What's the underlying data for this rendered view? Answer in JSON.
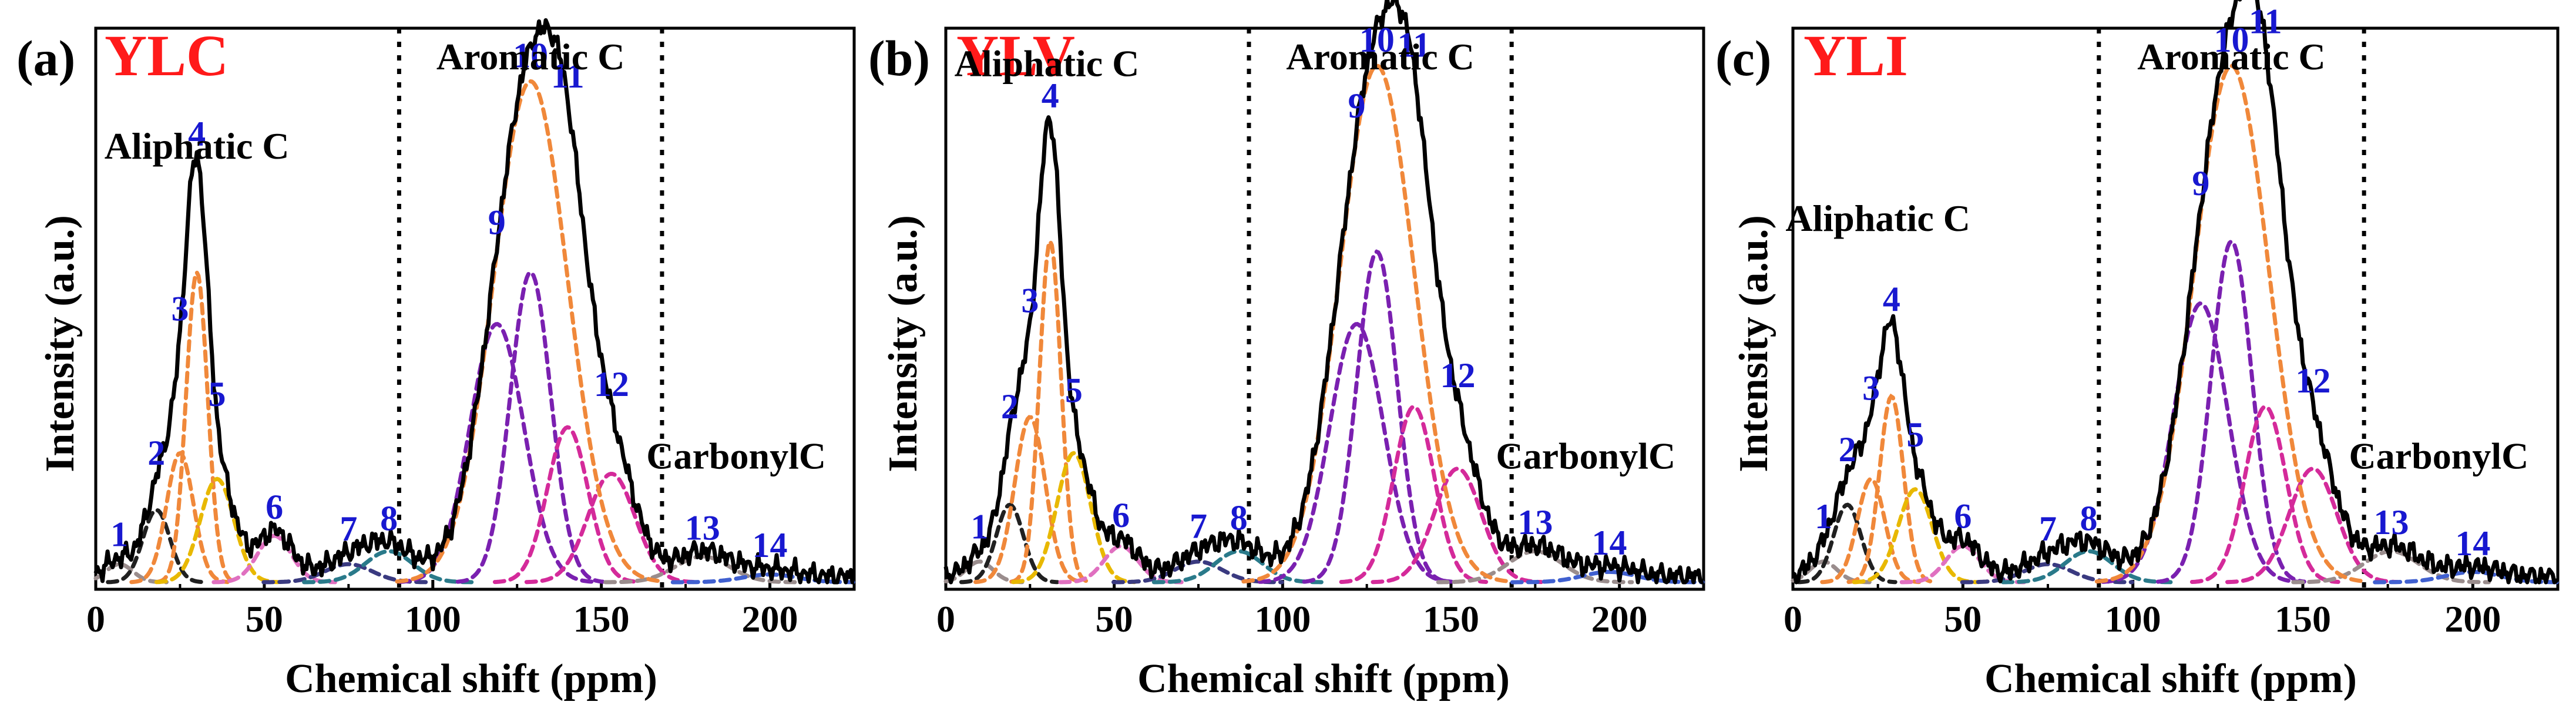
{
  "colors": {
    "sample_name": "#ff1a1a",
    "peak_number": "#1818d0",
    "spectrum": "#000000",
    "fit_orange": "#f0883a",
    "fit_purple": "#7a20b0",
    "fit_magenta": "#d42a9a",
    "fit_black": "#202020",
    "fit_gray": "#9a8d8d",
    "fit_navy": "#3a3a80",
    "fit_teal": "#2a7a8a",
    "fit_yellow": "#e8b800",
    "fit_pink": "#e070c0",
    "fit_blue": "#4060d0"
  },
  "chart_data": [
    {
      "type": "line",
      "panel_label": "(a)",
      "sample": "YLC",
      "xlabel": "Chemical shift (ppm)",
      "ylabel": "Intensity (a.u.)",
      "xlim": [
        0,
        225
      ],
      "ylim": [
        0,
        1.05
      ],
      "xticks": [
        0,
        50,
        100,
        150,
        200
      ],
      "region_dividers": [
        90,
        168
      ],
      "region_labels": [
        {
          "text": "Aliphatic C",
          "x": 30,
          "y": 0.82
        },
        {
          "text": "Aromatic C",
          "x": 129,
          "y": 1.1
        },
        {
          "text": "CarbonylC",
          "x": 190,
          "y": 0.22
        }
      ],
      "peaks": [
        {
          "id": "1",
          "center": 7,
          "height": 0.035,
          "width": 4,
          "color": "gray"
        },
        {
          "id": "2",
          "center": 18,
          "height": 0.14,
          "width": 4,
          "color": "black"
        },
        {
          "id": "3",
          "center": 25,
          "height": 0.25,
          "width": 4,
          "color": "orange"
        },
        {
          "id": "4",
          "center": 30,
          "height": 0.6,
          "width": 3.2,
          "color": "orange"
        },
        {
          "id": "5",
          "center": 36,
          "height": 0.2,
          "width": 5,
          "color": "yellow"
        },
        {
          "id": "6",
          "center": 53,
          "height": 0.09,
          "width": 5,
          "color": "pink"
        },
        {
          "id": "7",
          "center": 75,
          "height": 0.035,
          "width": 7,
          "color": "navy"
        },
        {
          "id": "8",
          "center": 87,
          "height": 0.06,
          "width": 7,
          "color": "teal"
        },
        {
          "id": "9",
          "center": 119,
          "height": 0.5,
          "width": 8,
          "color": "purple"
        },
        {
          "id": "10",
          "center": 129,
          "height": 0.6,
          "width": 6,
          "color": "purple"
        },
        {
          "id": "11",
          "center": 140,
          "height": 0.3,
          "width": 6,
          "color": "magenta"
        },
        {
          "id": "12",
          "center": 153,
          "height": 0.21,
          "width": 7,
          "color": "magenta"
        },
        {
          "id": "13",
          "center": 180,
          "height": 0.05,
          "width": 8,
          "color": "gray"
        },
        {
          "id": "14",
          "center": 200,
          "height": 0.015,
          "width": 8,
          "color": "blue"
        }
      ],
      "envelope_peak": {
        "id": "10",
        "center": 129,
        "height": 0.97,
        "width": 11,
        "color": "orange"
      }
    },
    {
      "type": "line",
      "panel_label": "(b)",
      "sample": "YLV",
      "xlabel": "Chemical shift (ppm)",
      "ylabel": "Intensity (a.u.)",
      "xlim": [
        0,
        225
      ],
      "ylim": [
        0,
        1.05
      ],
      "xticks": [
        0,
        50,
        100,
        150,
        200
      ],
      "region_dividers": [
        90,
        168
      ],
      "region_labels": [
        {
          "text": "Aliphatic C",
          "x": 30,
          "y": 0.98
        },
        {
          "text": "Aromatic C",
          "x": 129,
          "y": 1.1
        },
        {
          "text": "CarbonylC",
          "x": 190,
          "y": 0.22
        }
      ],
      "peaks": [
        {
          "id": "1",
          "center": 10,
          "height": 0.04,
          "width": 4,
          "color": "gray"
        },
        {
          "id": "2",
          "center": 19,
          "height": 0.15,
          "width": 4,
          "color": "black"
        },
        {
          "id": "3",
          "center": 25,
          "height": 0.32,
          "width": 4.5,
          "color": "orange"
        },
        {
          "id": "4",
          "center": 31,
          "height": 0.66,
          "width": 3.2,
          "color": "orange"
        },
        {
          "id": "5",
          "center": 38,
          "height": 0.25,
          "width": 5,
          "color": "yellow"
        },
        {
          "id": "6",
          "center": 52,
          "height": 0.07,
          "width": 5,
          "color": "pink"
        },
        {
          "id": "7",
          "center": 75,
          "height": 0.04,
          "width": 7,
          "color": "navy"
        },
        {
          "id": "8",
          "center": 87,
          "height": 0.06,
          "width": 7,
          "color": "teal"
        },
        {
          "id": "9",
          "center": 122,
          "height": 0.5,
          "width": 8,
          "color": "purple"
        },
        {
          "id": "10",
          "center": 128,
          "height": 0.64,
          "width": 6,
          "color": "purple"
        },
        {
          "id": "11",
          "center": 139,
          "height": 0.34,
          "width": 6,
          "color": "magenta"
        },
        {
          "id": "12",
          "center": 152,
          "height": 0.22,
          "width": 7,
          "color": "magenta"
        },
        {
          "id": "13",
          "center": 175,
          "height": 0.06,
          "width": 8,
          "color": "gray"
        },
        {
          "id": "14",
          "center": 197,
          "height": 0.02,
          "width": 8,
          "color": "blue"
        }
      ],
      "envelope_peak": {
        "id": "10",
        "center": 128,
        "height": 1.0,
        "width": 11,
        "color": "orange"
      }
    },
    {
      "type": "line",
      "panel_label": "(c)",
      "sample": "YLI",
      "xlabel": "Chemical shift (ppm)",
      "ylabel": "Intensity (a.u.)",
      "xlim": [
        0,
        225
      ],
      "ylim": [
        0,
        1.05
      ],
      "xticks": [
        0,
        50,
        100,
        150,
        200
      ],
      "region_dividers": [
        90,
        168
      ],
      "region_labels": [
        {
          "text": "Aliphatic C",
          "x": 25,
          "y": 0.68
        },
        {
          "text": "Aromatic C",
          "x": 129,
          "y": 1.1
        },
        {
          "text": "CarbonylC",
          "x": 190,
          "y": 0.22
        }
      ],
      "peaks": [
        {
          "id": "1",
          "center": 9,
          "height": 0.04,
          "width": 4,
          "color": "gray"
        },
        {
          "id": "2",
          "center": 16,
          "height": 0.15,
          "width": 4,
          "color": "black"
        },
        {
          "id": "3",
          "center": 23,
          "height": 0.2,
          "width": 4,
          "color": "orange"
        },
        {
          "id": "4",
          "center": 29,
          "height": 0.36,
          "width": 3.5,
          "color": "orange"
        },
        {
          "id": "5",
          "center": 36,
          "height": 0.18,
          "width": 5,
          "color": "yellow"
        },
        {
          "id": "6",
          "center": 50,
          "height": 0.07,
          "width": 5,
          "color": "pink"
        },
        {
          "id": "7",
          "center": 75,
          "height": 0.035,
          "width": 7,
          "color": "navy"
        },
        {
          "id": "8",
          "center": 87,
          "height": 0.06,
          "width": 7,
          "color": "teal"
        },
        {
          "id": "9",
          "center": 120,
          "height": 0.54,
          "width": 8,
          "color": "purple"
        },
        {
          "id": "10",
          "center": 129,
          "height": 0.66,
          "width": 6,
          "color": "purple"
        },
        {
          "id": "11",
          "center": 139,
          "height": 0.34,
          "width": 6,
          "color": "magenta"
        },
        {
          "id": "12",
          "center": 153,
          "height": 0.22,
          "width": 7,
          "color": "magenta"
        },
        {
          "id": "13",
          "center": 176,
          "height": 0.06,
          "width": 8,
          "color": "gray"
        },
        {
          "id": "14",
          "center": 200,
          "height": 0.02,
          "width": 8,
          "color": "blue"
        }
      ],
      "envelope_peak": {
        "id": "10",
        "center": 129,
        "height": 1.0,
        "width": 11,
        "color": "orange"
      }
    }
  ]
}
